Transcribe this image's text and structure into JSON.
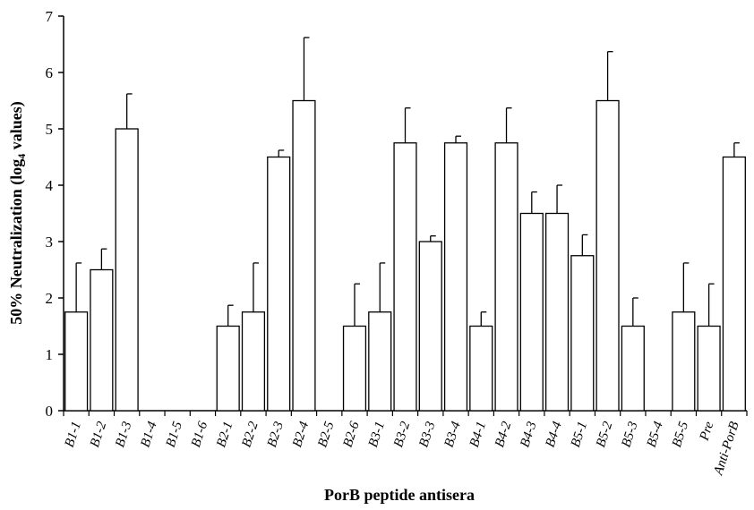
{
  "chart_data": {
    "type": "bar",
    "xlabel": "PorB peptide antisera",
    "ylabel": "50% Neutralization (log4 values)",
    "ylabel_parts": {
      "before": "50% Neutralization (log",
      "sub": "4",
      "after": " values)"
    },
    "ylim": [
      0,
      7
    ],
    "yticks": [
      "0",
      "1",
      "2",
      "3",
      "4",
      "5",
      "6",
      "7"
    ],
    "grid": false,
    "legend": "none",
    "categories": [
      "B1-1",
      "B1-2",
      "B1-3",
      "B1-4",
      "B1-5",
      "B1-6",
      "B2-1",
      "B2-2",
      "B2-3",
      "B2-4",
      "B2-5",
      "B2-6",
      "B3-1",
      "B3-2",
      "B3-3",
      "B3-4",
      "B4-1",
      "B4-2",
      "B4-3",
      "B4-4",
      "B5-1",
      "B5-2",
      "B5-3",
      "B5-4",
      "B5-5",
      "Pre",
      "Anti-PorB"
    ],
    "values": [
      1.75,
      2.5,
      5.0,
      0,
      0,
      0,
      1.5,
      1.75,
      4.5,
      5.5,
      0,
      1.5,
      1.75,
      4.75,
      3.0,
      4.75,
      1.5,
      4.75,
      3.5,
      3.5,
      2.75,
      5.5,
      1.5,
      0,
      1.75,
      1.5,
      4.5
    ],
    "error_upper": [
      0.87,
      0.37,
      0.62,
      0,
      0,
      0,
      0.37,
      0.87,
      0.12,
      1.12,
      0,
      0.75,
      0.87,
      0.62,
      0.1,
      0.12,
      0.25,
      0.62,
      0.38,
      0.5,
      0.37,
      0.87,
      0.5,
      0,
      0.87,
      0.75,
      0.25
    ],
    "colors": {
      "bar_fill": "#ffffff",
      "bar_stroke": "#000000",
      "axis": "#000000"
    }
  }
}
